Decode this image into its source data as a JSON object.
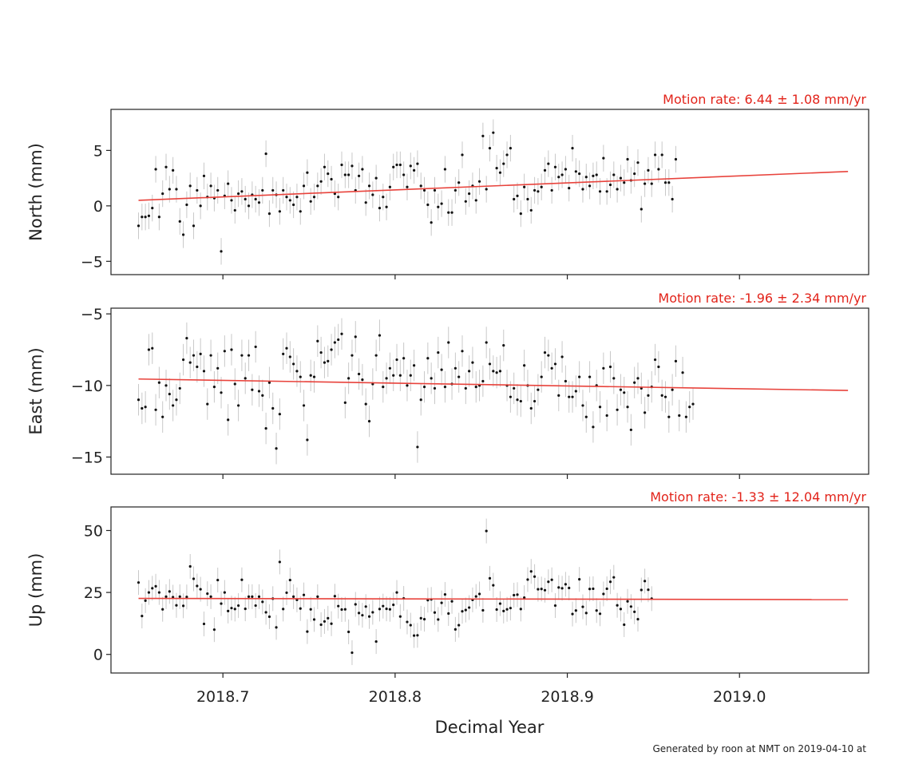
{
  "figure": {
    "xlabel": "Decimal Year",
    "footer": "Generated by roon at NMT on 2019-04-10 at",
    "colors": {
      "fit_line": "#e8433c",
      "rate_text": "#e2231a",
      "points": "#111111",
      "error_bars": "#c8c8c8",
      "axes": "#222222"
    }
  },
  "chart_data": [
    {
      "type": "scatter",
      "ylabel": "North (mm)",
      "rate_label": "Motion rate: 6.44 ± 1.08 mm/yr",
      "xlim": [
        2018.635,
        2019.075
      ],
      "ylim": [
        -6.2,
        8.7
      ],
      "x_ticks": [
        2018.7,
        2018.8,
        2018.9,
        2019.0
      ],
      "x_tick_labels": [],
      "y_ticks": [
        -5,
        0,
        5
      ],
      "y_tick_labels": [
        "−5",
        "0",
        "5"
      ],
      "error_bar_mm": 1.2,
      "trend": {
        "x": [
          2018.651,
          2019.063
        ],
        "y": [
          0.5,
          3.1
        ]
      },
      "series": [
        {
          "x_start": 2018.651,
          "x_step": 0.002,
          "y": [
            -1.8,
            -1,
            -1,
            -0.9,
            -0.2,
            3.3,
            -1,
            1.1,
            3.5,
            1.5,
            3.2,
            1.5,
            -1.4,
            -2.6,
            0.1,
            1.8,
            -1.8,
            1.4,
            0,
            2.7,
            0.8,
            1.8,
            0.7,
            1.4,
            -4.1,
            0.9,
            2,
            0.5,
            -0.4,
            1.1,
            1.3,
            0.6,
            0,
            1,
            0.6,
            0.3,
            1.4,
            4.7,
            -0.7,
            1.4,
            1,
            -0.5,
            1.4,
            0.8,
            0.5,
            0.1,
            0.8,
            -0.5,
            1.8,
            3,
            0.4,
            0.8,
            1.8,
            2.2,
            3.5,
            2.9,
            2.4,
            1.1,
            0.8,
            3.7,
            2.8,
            2.8,
            3.6,
            1.4,
            2.7,
            3.3,
            0.3,
            1.8,
            1,
            2.5,
            -0.2,
            0.8,
            -0.1,
            1.7,
            3.5,
            3.7,
            3.7,
            2.8,
            1.7,
            3.6,
            3.2,
            3.8,
            1.8,
            1.4,
            0.1,
            -1.5,
            1.4,
            -0.1,
            0.2,
            3.3,
            -0.6,
            -0.6,
            1.4,
            2.1,
            4.6,
            0.4,
            1.1,
            1.8,
            0.5,
            2.2,
            6.3,
            1.5,
            5.2,
            6.6,
            3.4,
            3,
            3.8,
            4.6,
            5.2,
            0.6,
            0.9,
            -0.7,
            1.7,
            0.6,
            -0.4,
            1.4,
            1.3,
            1.7,
            3.2,
            3.8,
            1.4,
            3.5,
            2.6,
            2.8,
            3.3,
            1.6,
            5.2,
            3.1,
            2.9,
            1.5,
            2.6,
            1.8,
            2.7,
            2.8,
            1.3,
            4.3,
            1.3,
            1.9,
            2.8,
            1.5,
            2.5,
            2.1,
            4.2,
            2.3,
            2.9,
            3.9,
            -0.3,
            2,
            3.2,
            2,
            4.6,
            3.3,
            4.6,
            2.1,
            2.1,
            0.6,
            4.2
          ]
        }
      ]
    },
    {
      "type": "scatter",
      "ylabel": "East (mm)",
      "rate_label": "Motion rate: -1.96 ± 2.34 mm/yr",
      "xlim": [
        2018.635,
        2019.075
      ],
      "ylim": [
        -16.2,
        -4.6
      ],
      "x_ticks": [
        2018.7,
        2018.8,
        2018.9,
        2019.0
      ],
      "x_tick_labels": [],
      "y_ticks": [
        -15,
        -10,
        -5
      ],
      "y_tick_labels": [
        "−15",
        "−10",
        "−5"
      ],
      "error_bar_mm": 1.1,
      "trend": {
        "x": [
          2018.651,
          2019.063
        ],
        "y": [
          -9.55,
          -10.35
        ]
      },
      "series": [
        {
          "x_start": 2018.651,
          "x_step": 0.002,
          "y": [
            -11,
            -11.6,
            -11.5,
            -7.5,
            -7.4,
            -11.7,
            -9.8,
            -12.2,
            -10,
            -10.6,
            -11.4,
            -11,
            -10.2,
            -8.2,
            -6.7,
            -8.4,
            -7.9,
            -8.7,
            -7.8,
            -9,
            -11.3,
            -7.9,
            -10.1,
            -8.8,
            -10.5,
            -7.6,
            -12.4,
            -7.5,
            -9.9,
            -11.4,
            -7.9,
            -9.5,
            -7.9,
            -10.3,
            -7.3,
            -10.4,
            -10.7,
            -13,
            -9.8,
            -11.6,
            -14.4,
            -12,
            -7.8,
            -7.4,
            -8,
            -8.5,
            -9,
            -9.4,
            -11.4,
            -13.8,
            -9.3,
            -9.4,
            -6.9,
            -7.7,
            -8.4,
            -8.3,
            -7.5,
            -7,
            -6.8,
            -6.4,
            -11.2,
            -9.5,
            -7.9,
            -6.6,
            -9.2,
            -9.6,
            -11.3,
            -12.5,
            -9.9,
            -7.9,
            -6.5,
            -10.1,
            -9.5,
            -8.8,
            -9.3,
            -8.2,
            -9.3,
            -8.1,
            -10,
            -9.3,
            -8.6,
            -14.3,
            -11,
            -10.1,
            -8.1,
            -9.5,
            -10.2,
            -7.7,
            -8.9,
            -10.1,
            -7,
            -9.9,
            -8.8,
            -9.4,
            -7.6,
            -10.2,
            -9,
            -8.4,
            -10.1,
            -10,
            -9.7,
            -7,
            -8.5,
            -9,
            -9.1,
            -9,
            -7.2,
            -10,
            -10.8,
            -10.2,
            -11,
            -11.1,
            -8.6,
            -10,
            -11.6,
            -11.1,
            -10.3,
            -9.4,
            -7.7,
            -7.9,
            -8.8,
            -8.5,
            -10.7,
            -8,
            -9.7,
            -10.8,
            -10.8,
            -10.4,
            -9.4,
            -11.4,
            -12.2,
            -9.4,
            -12.9,
            -10,
            -11.5,
            -8.8,
            -12.1,
            -8.7,
            -9.5,
            -11.7,
            -10.3,
            -10.5,
            -11.5,
            -13.1,
            -9.8,
            -9.5,
            -10.2,
            -11.9,
            -10.7,
            -10.1,
            -8.2,
            -8.7,
            -10.7,
            -10.8,
            -12.2,
            -10.3,
            -8.3,
            -12.1,
            -9.1,
            -12.2,
            -11.5,
            -11.3
          ]
        }
      ]
    },
    {
      "type": "scatter",
      "ylabel": "Up (mm)",
      "rate_label": "Motion rate: -1.33 ± 12.04 mm/yr",
      "xlim": [
        2018.635,
        2019.075
      ],
      "ylim": [
        -7.5,
        59.5
      ],
      "x_ticks": [
        2018.7,
        2018.8,
        2018.9,
        2019.0
      ],
      "x_tick_labels": [
        "2018.7",
        "2018.8",
        "2018.9",
        "2019.0"
      ],
      "y_ticks": [
        0,
        25,
        50
      ],
      "y_tick_labels": [
        "0",
        "25",
        "50"
      ],
      "error_bar_mm": 5,
      "trend": {
        "x": [
          2018.651,
          2019.063
        ],
        "y": [
          22.6,
          22.1
        ]
      },
      "series": [
        {
          "x_start": 2018.651,
          "x_step": 0.002,
          "y": [
            29,
            15.5,
            21.7,
            25,
            26.7,
            27.5,
            25,
            18.2,
            23.3,
            25.4,
            23.1,
            19.8,
            23.3,
            19.6,
            23.2,
            35.5,
            30.5,
            27.6,
            26.3,
            12.3,
            24.5,
            23.3,
            10,
            30,
            20.5,
            25,
            17.5,
            18.7,
            18.3,
            19.7,
            30.1,
            18.4,
            23.3,
            23.3,
            19.7,
            23.3,
            21.2,
            17,
            15.2,
            22.5,
            10.9,
            37.3,
            18.3,
            24.9,
            30,
            23.3,
            22,
            18.5,
            24,
            9.2,
            18.2,
            14.1,
            23.3,
            12,
            13.3,
            14.6,
            12.4,
            23.5,
            19.5,
            18.1,
            18.2,
            9.1,
            0.7,
            20.2,
            16.7,
            15.8,
            19.3,
            15.3,
            17,
            5.2,
            18.3,
            19.5,
            18.4,
            18.2,
            20,
            25,
            15.3,
            22.6,
            13.1,
            11.8,
            7.6,
            7.7,
            14.6,
            14.2,
            21.9,
            22.2,
            16.9,
            14.1,
            20.8,
            24.2,
            16.5,
            21.4,
            10.1,
            11.8,
            17.4,
            17.9,
            18.9,
            22,
            23.4,
            24.4,
            17.8,
            49.8,
            30.7,
            27.9,
            18.1,
            20.5,
            17.5,
            18.2,
            18.7,
            23.9,
            24.1,
            18.3,
            22.9,
            30.2,
            33.5,
            31.4,
            26.3,
            26.4,
            25.9,
            29.3,
            30.1,
            19.7,
            27,
            26.7,
            28.3,
            26.8,
            16.3,
            17.7,
            30.3,
            19.2,
            16.7,
            26.4,
            26.5,
            17.7,
            16.4,
            24.4,
            26.5,
            29.3,
            31.1,
            19.8,
            18.3,
            12,
            21.4,
            19.3,
            17.2,
            14.2,
            26,
            29.6,
            26.1,
            22.5
          ]
        }
      ]
    }
  ]
}
